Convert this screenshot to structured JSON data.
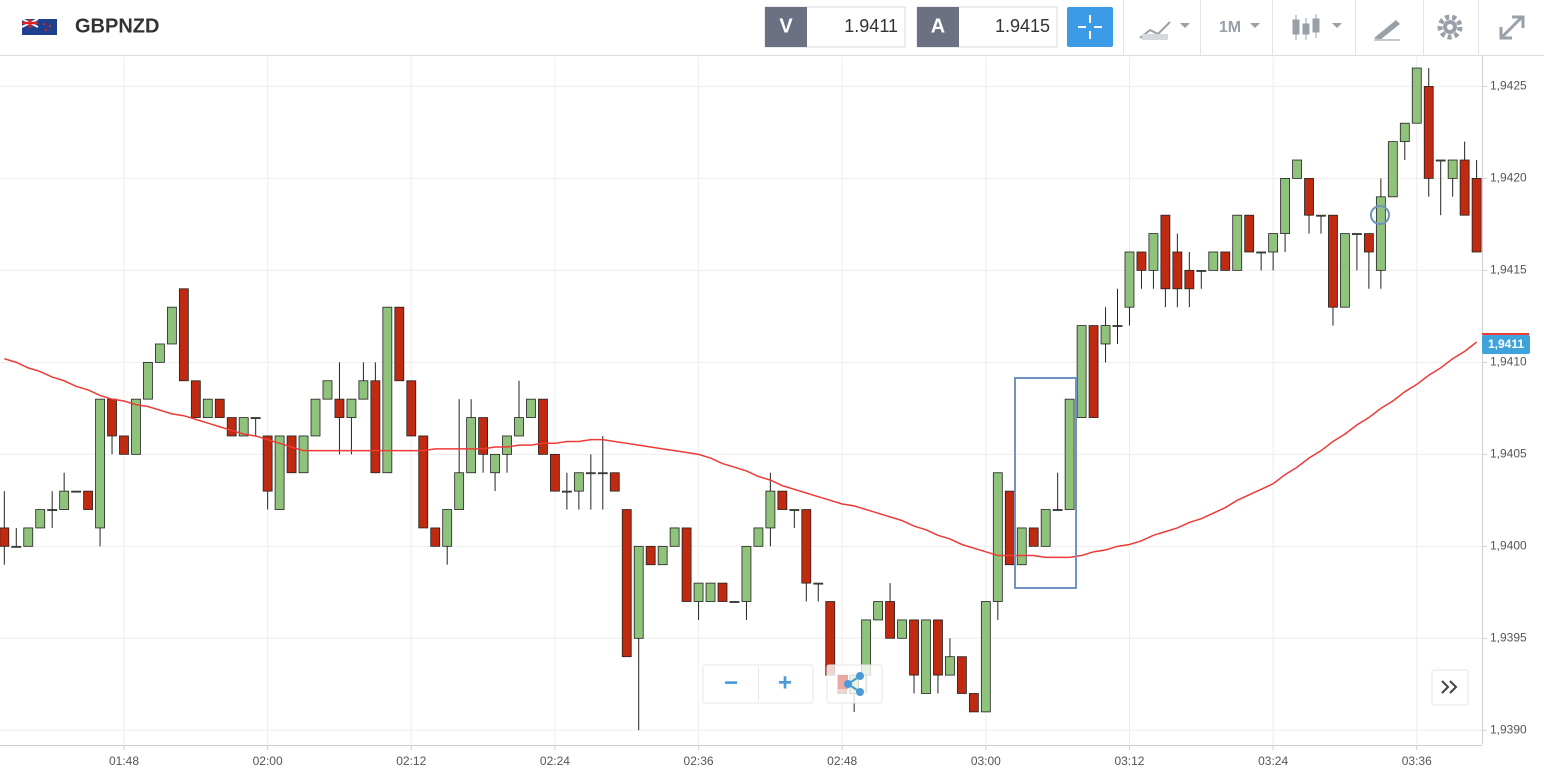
{
  "header": {
    "symbol": "GBPNZD",
    "bid_label": "V",
    "bid": 1.9411,
    "ask_label": "A",
    "ask": 1.9415,
    "timeframe": "1M"
  },
  "controls": {
    "zoom_out": "−",
    "zoom_in": "+"
  },
  "chart_data": {
    "type": "candlestick",
    "categories": [
      null,
      null,
      null,
      null,
      null,
      null,
      null,
      null,
      null,
      null,
      "01:48",
      null,
      null,
      null,
      null,
      null,
      null,
      null,
      null,
      null,
      null,
      null,
      "02:00",
      null,
      null,
      null,
      null,
      null,
      null,
      null,
      null,
      null,
      null,
      null,
      "02:12",
      null,
      null,
      null,
      null,
      null,
      null,
      null,
      null,
      null,
      null,
      null,
      "02:24",
      null,
      null,
      null,
      null,
      null,
      null,
      null,
      null,
      null,
      null,
      null,
      "02:36",
      null,
      null,
      null,
      null,
      null,
      null,
      null,
      null,
      null,
      null,
      null,
      "02:48",
      null,
      null,
      null,
      null,
      null,
      null,
      null,
      null,
      null,
      null,
      null,
      "03:00",
      null,
      null,
      null,
      null,
      null,
      null,
      null,
      null,
      null,
      null,
      null,
      "03:12",
      null,
      null,
      null,
      null,
      null,
      null,
      null,
      null,
      null,
      null,
      null,
      "03:24",
      null,
      null,
      null,
      null,
      null,
      null,
      null,
      null,
      null,
      null,
      null,
      "03:36",
      null,
      null,
      null,
      null,
      null
    ],
    "open": [
      1.9401,
      1.94,
      1.94,
      1.9401,
      1.9402,
      1.9402,
      1.9403,
      1.9403,
      1.9401,
      1.9408,
      1.9406,
      1.9405,
      1.9408,
      1.941,
      1.9411,
      1.9414,
      1.9409,
      1.9407,
      1.9408,
      1.9407,
      1.9406,
      1.9407,
      1.9406,
      1.9402,
      1.9406,
      1.9404,
      1.9406,
      1.9408,
      1.9408,
      1.9407,
      1.9408,
      1.9409,
      1.9404,
      1.9413,
      1.9409,
      1.9406,
      1.9401,
      1.94,
      1.9402,
      1.9404,
      1.9407,
      1.9404,
      1.9405,
      1.9406,
      1.9407,
      1.9408,
      1.9405,
      1.9403,
      1.9403,
      1.9404,
      1.9404,
      1.9404,
      1.9402,
      1.9395,
      1.94,
      1.9399,
      1.94,
      1.9401,
      1.9397,
      1.9397,
      1.9398,
      1.9397,
      1.9397,
      1.94,
      1.9401,
      1.9403,
      1.9402,
      1.9402,
      1.9398,
      1.9397,
      1.9393,
      1.9392,
      1.9393,
      1.9396,
      1.9397,
      1.9395,
      1.9396,
      1.9392,
      1.9396,
      1.9393,
      1.9394,
      1.9392,
      1.9391,
      1.9397,
      1.9403,
      1.9399,
      1.9401,
      1.94,
      1.9402,
      1.9402,
      1.9407,
      1.9412,
      1.9411,
      1.9412,
      1.9413,
      1.9416,
      1.9415,
      1.9418,
      1.9416,
      1.9415,
      1.9415,
      1.9415,
      1.9416,
      1.9415,
      1.9418,
      1.9416,
      1.9416,
      1.9417,
      1.942,
      1.942,
      1.9418,
      1.9418,
      1.9413,
      1.9417,
      1.9417,
      1.9415,
      1.9419,
      1.9422,
      1.9423,
      1.9425,
      1.9421,
      1.942,
      1.9421,
      1.942
    ],
    "high": [
      1.9403,
      1.9401,
      1.9401,
      1.9402,
      1.9403,
      1.9404,
      1.9403,
      1.9403,
      1.9408,
      1.9408,
      1.9406,
      1.9408,
      1.941,
      1.9411,
      1.9413,
      1.9414,
      1.9409,
      1.9408,
      1.9408,
      1.9407,
      1.9407,
      1.9407,
      1.9406,
      1.9406,
      1.9406,
      1.9406,
      1.9408,
      1.9409,
      1.941,
      1.9408,
      1.941,
      1.941,
      1.9413,
      1.9413,
      1.9409,
      1.9406,
      1.9401,
      1.9402,
      1.9408,
      1.9408,
      1.9407,
      1.9405,
      1.9406,
      1.9409,
      1.9408,
      1.9408,
      1.9405,
      1.9404,
      1.9404,
      1.9405,
      1.9406,
      1.9404,
      1.9402,
      1.94,
      1.94,
      1.94,
      1.9401,
      1.9401,
      1.9398,
      1.9398,
      1.9398,
      1.9397,
      1.94,
      1.9401,
      1.9404,
      1.9403,
      1.9402,
      1.9402,
      1.9398,
      1.9397,
      1.9393,
      1.9393,
      1.9396,
      1.9397,
      1.9398,
      1.9396,
      1.9396,
      1.9396,
      1.9396,
      1.9395,
      1.9394,
      1.9392,
      1.9397,
      1.9404,
      1.9403,
      1.9401,
      1.9401,
      1.9402,
      1.9404,
      1.9408,
      1.9412,
      1.9412,
      1.9413,
      1.9414,
      1.9416,
      1.9416,
      1.9417,
      1.9418,
      1.9417,
      1.9416,
      1.9415,
      1.9416,
      1.9416,
      1.9418,
      1.9418,
      1.9416,
      1.9417,
      1.942,
      1.9421,
      1.942,
      1.9418,
      1.9418,
      1.9417,
      1.9417,
      1.9417,
      1.942,
      1.9422,
      1.9423,
      1.9426,
      1.9426,
      1.9421,
      1.9421,
      1.9422,
      1.9421
    ],
    "low": [
      1.9399,
      1.94,
      1.94,
      1.9401,
      1.9401,
      1.9402,
      1.9403,
      1.9402,
      1.94,
      1.9405,
      1.9405,
      1.9405,
      1.9408,
      1.941,
      1.9411,
      1.9409,
      1.9407,
      1.9407,
      1.9407,
      1.9406,
      1.9406,
      1.9406,
      1.9402,
      1.9402,
      1.9404,
      1.9404,
      1.9406,
      1.9408,
      1.9405,
      1.9405,
      1.9408,
      1.9404,
      1.9404,
      1.9409,
      1.9406,
      1.9401,
      1.94,
      1.9399,
      1.9402,
      1.9404,
      1.9404,
      1.9403,
      1.9404,
      1.9406,
      1.9407,
      1.9405,
      1.9403,
      1.9402,
      1.9402,
      1.9402,
      1.9402,
      1.9403,
      1.9394,
      1.939,
      1.9399,
      1.9399,
      1.94,
      1.9397,
      1.9396,
      1.9397,
      1.9397,
      1.9397,
      1.9396,
      1.94,
      1.94,
      1.9402,
      1.9401,
      1.9397,
      1.9397,
      1.9393,
      1.9392,
      1.9391,
      1.9392,
      1.9396,
      1.9395,
      1.9395,
      1.9392,
      1.9392,
      1.9392,
      1.9393,
      1.9392,
      1.9391,
      1.9391,
      1.9396,
      1.9399,
      1.9399,
      1.94,
      1.94,
      1.9402,
      1.9402,
      1.9407,
      1.9407,
      1.941,
      1.9411,
      1.9412,
      1.9414,
      1.9414,
      1.9413,
      1.9413,
      1.9413,
      1.9414,
      1.9415,
      1.9415,
      1.9415,
      1.9416,
      1.9415,
      1.9415,
      1.9416,
      1.942,
      1.9417,
      1.9417,
      1.9412,
      1.9413,
      1.9415,
      1.9414,
      1.9414,
      1.9419,
      1.9421,
      1.9423,
      1.9419,
      1.9418,
      1.9419,
      1.9418,
      1.9416
    ],
    "close": [
      1.94,
      1.94,
      1.9401,
      1.9402,
      1.9402,
      1.9403,
      1.9403,
      1.9402,
      1.9408,
      1.9406,
      1.9405,
      1.9408,
      1.941,
      1.9411,
      1.9413,
      1.9409,
      1.9407,
      1.9408,
      1.9407,
      1.9406,
      1.9407,
      1.9407,
      1.9403,
      1.9406,
      1.9404,
      1.9406,
      1.9408,
      1.9409,
      1.9407,
      1.9408,
      1.9409,
      1.9404,
      1.9413,
      1.9409,
      1.9406,
      1.9401,
      1.94,
      1.9402,
      1.9404,
      1.9407,
      1.9405,
      1.9405,
      1.9406,
      1.9407,
      1.9408,
      1.9405,
      1.9403,
      1.9403,
      1.9404,
      1.9404,
      1.9404,
      1.9403,
      1.9394,
      1.94,
      1.9399,
      1.94,
      1.9401,
      1.9397,
      1.9398,
      1.9398,
      1.9397,
      1.9397,
      1.94,
      1.9401,
      1.9403,
      1.9402,
      1.9402,
      1.9398,
      1.9398,
      1.9393,
      1.9392,
      1.9393,
      1.9396,
      1.9397,
      1.9395,
      1.9396,
      1.9393,
      1.9396,
      1.9393,
      1.9394,
      1.9392,
      1.9391,
      1.9397,
      1.9404,
      1.9399,
      1.9401,
      1.94,
      1.9402,
      1.9402,
      1.9408,
      1.9412,
      1.9407,
      1.9412,
      1.9412,
      1.9416,
      1.9415,
      1.9417,
      1.9414,
      1.9414,
      1.9414,
      1.9415,
      1.9416,
      1.9415,
      1.9418,
      1.9416,
      1.9416,
      1.9417,
      1.942,
      1.9421,
      1.9418,
      1.9418,
      1.9413,
      1.9417,
      1.9417,
      1.9416,
      1.9419,
      1.9422,
      1.9423,
      1.9426,
      1.942,
      1.9421,
      1.9421,
      1.9418,
      1.9416
    ],
    "up_color": "#8fc27b",
    "down_color": "#bf2a10",
    "ma": {
      "color": "#ec3b35",
      "values": [
        1.94102,
        1.941,
        1.94097,
        1.94095,
        1.94092,
        1.9409,
        1.94087,
        1.94085,
        1.94082,
        1.9408,
        1.94079,
        1.94077,
        1.94076,
        1.94074,
        1.94072,
        1.94071,
        1.94069,
        1.94067,
        1.94065,
        1.94063,
        1.94061,
        1.9406,
        1.94058,
        1.94056,
        1.94054,
        1.94052,
        1.94052,
        1.94052,
        1.94052,
        1.94052,
        1.94052,
        1.94052,
        1.94052,
        1.94052,
        1.94052,
        1.94052,
        1.94053,
        1.94053,
        1.94053,
        1.94053,
        1.94053,
        1.94054,
        1.94054,
        1.94055,
        1.94055,
        1.94056,
        1.94056,
        1.94057,
        1.94057,
        1.94058,
        1.94058,
        1.94057,
        1.94056,
        1.94055,
        1.94054,
        1.94053,
        1.94052,
        1.94051,
        1.9405,
        1.94048,
        1.94045,
        1.94043,
        1.94041,
        1.94038,
        1.94036,
        1.94033,
        1.94031,
        1.94029,
        1.94027,
        1.94025,
        1.94023,
        1.94022,
        1.9402,
        1.94018,
        1.94016,
        1.94014,
        1.94011,
        1.94009,
        1.94006,
        1.94004,
        1.94001,
        1.93999,
        1.93997,
        1.93995,
        1.93995,
        1.93995,
        1.93995,
        1.93994,
        1.93994,
        1.93994,
        1.93995,
        1.93997,
        1.93998,
        1.94,
        1.94001,
        1.94003,
        1.94006,
        1.94008,
        1.9401,
        1.94013,
        1.94015,
        1.94018,
        1.94021,
        1.94025,
        1.94028,
        1.94031,
        1.94034,
        1.94039,
        1.94043,
        1.94048,
        1.94052,
        1.94057,
        1.94061,
        1.94066,
        1.9407,
        1.94075,
        1.94079,
        1.94084,
        1.94088,
        1.94093,
        1.94097,
        1.94102,
        1.94106,
        1.94111
      ]
    },
    "ylim": [
      1.93892,
      1.94266
    ],
    "yticks": [
      {
        "value": 1.939,
        "label": "1,9390"
      },
      {
        "value": 1.9395,
        "label": "1,9395"
      },
      {
        "value": 1.94,
        "label": "1,9400"
      },
      {
        "value": 1.9405,
        "label": "1,9405"
      },
      {
        "value": 1.941,
        "label": "1,9410"
      },
      {
        "value": 1.9415,
        "label": "1,9415"
      },
      {
        "value": 1.942,
        "label": "1,9420"
      },
      {
        "value": 1.9425,
        "label": "1,9425"
      }
    ],
    "price_tag": {
      "value": 1.9411,
      "label": "1,9411",
      "color": "#3da3da"
    },
    "grid": true
  }
}
